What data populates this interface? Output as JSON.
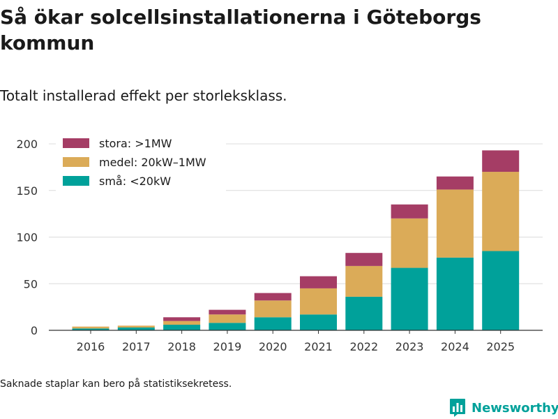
{
  "title": "Så ökar solcellsinstallationerna i Göteborgs kommun",
  "subtitle": "Totalt installerad effekt per storleksklass.",
  "footnote": "Saknade staplar kan bero på statistiksekretess.",
  "brand": {
    "name": "Newsworthy",
    "color": "#00a19a",
    "icon": "bar-chart-logo-icon"
  },
  "chart_data": {
    "type": "bar",
    "stacked": true,
    "categories": [
      "2016",
      "2017",
      "2018",
      "2019",
      "2020",
      "2021",
      "2022",
      "2023",
      "2024",
      "2025"
    ],
    "series": [
      {
        "name": "små: <20kW",
        "color": "#00a19a",
        "values": [
          2,
          3,
          6,
          8,
          14,
          17,
          36,
          67,
          78,
          85
        ]
      },
      {
        "name": "medel: 20kW–1MW",
        "color": "#dbab58",
        "values": [
          2,
          2,
          4,
          9,
          18,
          28,
          33,
          53,
          73,
          85
        ]
      },
      {
        "name": "stora: >1MW",
        "color": "#a53d65",
        "values": [
          0,
          0,
          4,
          5,
          8,
          13,
          14,
          15,
          14,
          23
        ]
      }
    ],
    "legend_order": [
      2,
      1,
      0
    ],
    "legend_position": "top-left",
    "ylim": [
      0,
      200
    ],
    "yticks": [
      0,
      50,
      100,
      150,
      200
    ],
    "grid": true,
    "xlabel": "",
    "ylabel": ""
  }
}
